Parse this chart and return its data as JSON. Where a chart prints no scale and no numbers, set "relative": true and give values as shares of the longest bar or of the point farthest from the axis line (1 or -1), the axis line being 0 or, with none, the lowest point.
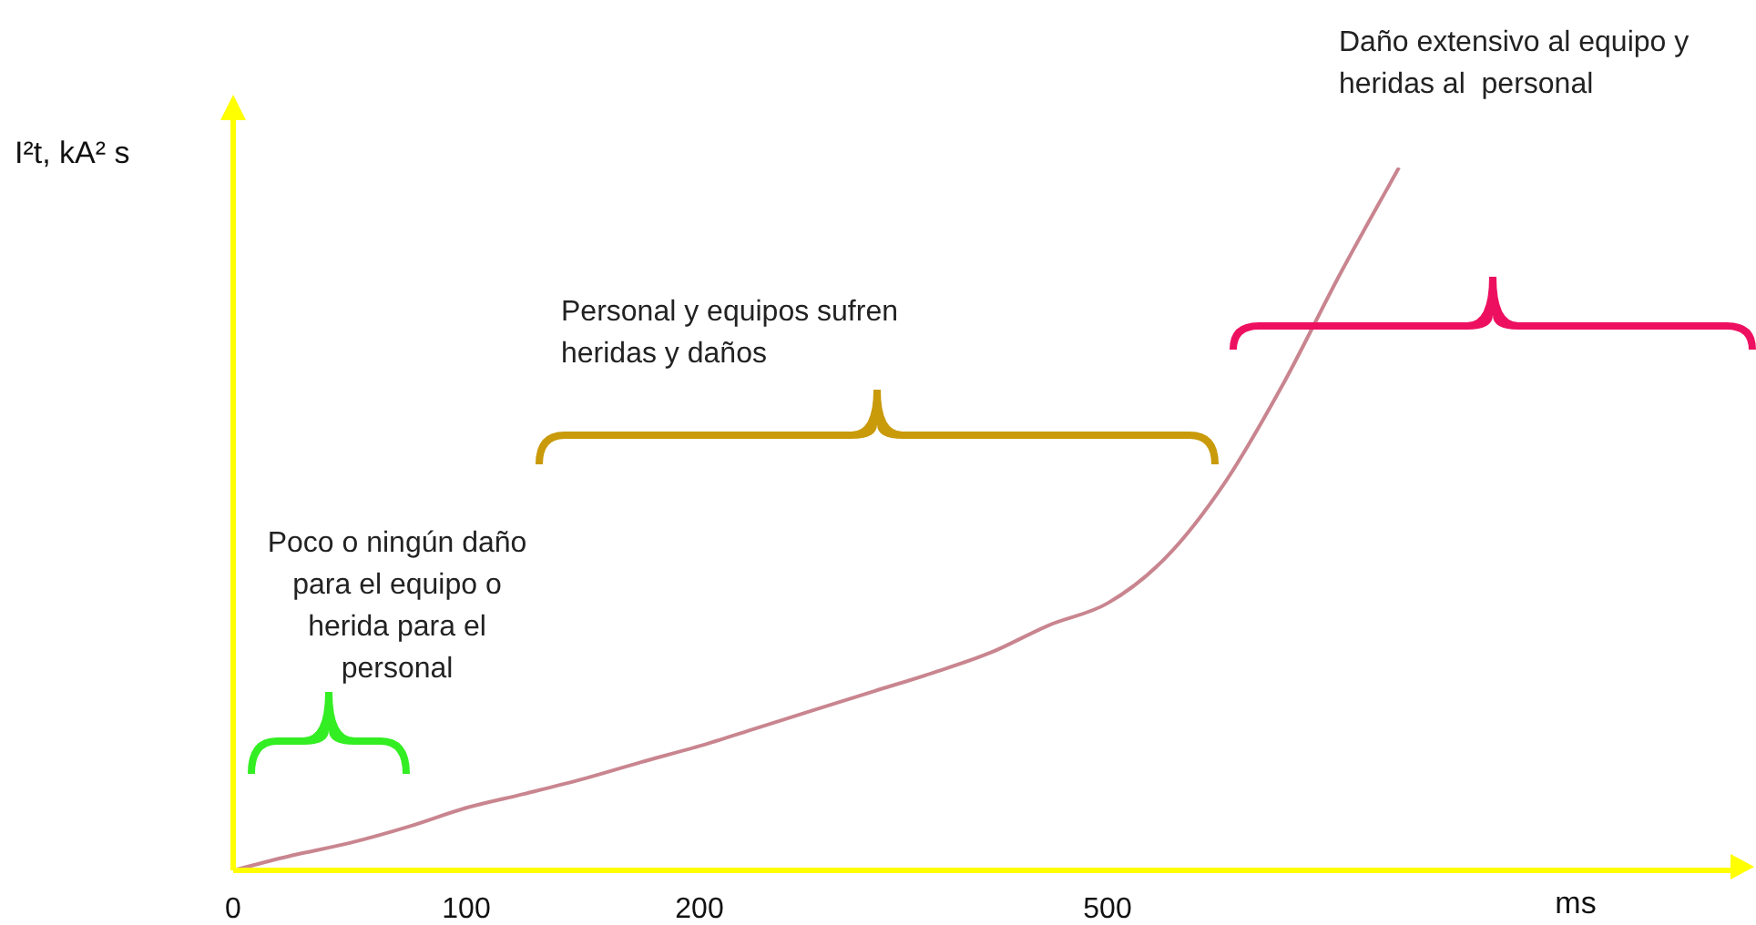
{
  "chart_data": {
    "type": "line",
    "relative": true,
    "ylabel": "I²t, kA² s",
    "xlabel": "ms",
    "marker": "none",
    "color": "#c9858f",
    "categories": [
      "0",
      null,
      null,
      null,
      "100",
      null,
      null,
      null,
      "200",
      null,
      null,
      null,
      null,
      null,
      null,
      "500",
      null,
      null,
      null,
      null,
      null,
      null,
      null,
      null,
      null,
      null,
      null
    ],
    "values": [
      0,
      0.021,
      0.039,
      0.062,
      0.089,
      0.109,
      0.13,
      0.154,
      0.177,
      0.203,
      0.229,
      0.255,
      0.281,
      0.31,
      0.349,
      0.38,
      0.445,
      0.55,
      0.69,
      0.85,
      1.0,
      null,
      null,
      null,
      null,
      null,
      null
    ],
    "annotations": [
      "Poco o ningún daño para el equipo o herida para el personal",
      "Personal y equipos sufren heridas y daños",
      "Daño extensivo al equipo y heridas al  personal"
    ]
  }
}
